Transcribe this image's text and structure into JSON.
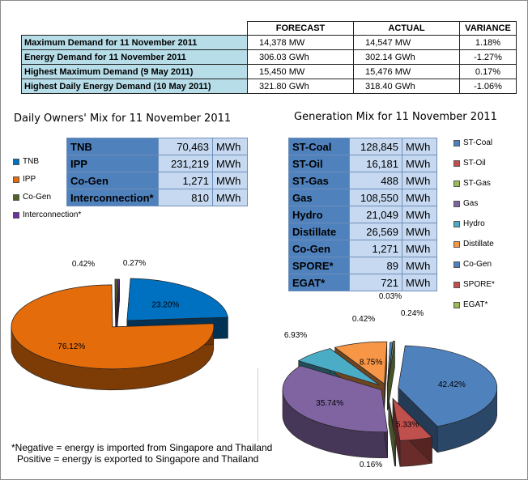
{
  "summary": {
    "headers": [
      "FORECAST",
      "ACTUAL",
      "VARIANCE"
    ],
    "rows": [
      {
        "label": "Maximum Demand for 11 November 2011",
        "forecast": "14,378 MW",
        "actual": "14,547 MW",
        "variance": "1.18%"
      },
      {
        "label": "Energy Demand for 11 November 2011",
        "forecast": "306.03 GWh",
        "actual": "302.14 GWh",
        "variance": "-1.27%"
      },
      {
        "label": "Highest Maximum Demand (9 May 2011)",
        "forecast": "15,450 MW",
        "actual": "15,476 MW",
        "variance": "0.17%"
      },
      {
        "label": "Highest Daily Energy Demand (10 May 2011)",
        "forecast": "321.80 GWh",
        "actual": "318.40 GWh",
        "variance": "-1.06%"
      }
    ]
  },
  "owners": {
    "title": "Daily Owners' Mix for 11 November 2011",
    "rows": [
      {
        "name": "TNB",
        "value": "70,463",
        "unit": "MWh"
      },
      {
        "name": "IPP",
        "value": "231,219",
        "unit": "MWh"
      },
      {
        "name": "Co-Gen",
        "value": "1,271",
        "unit": "MWh"
      },
      {
        "name": "Interconnection*",
        "value": "810",
        "unit": "MWh"
      }
    ]
  },
  "generation": {
    "title": "Generation Mix for 11 November 2011",
    "rows": [
      {
        "name": "ST-Coal",
        "value": "128,845",
        "unit": "MWh"
      },
      {
        "name": "ST-Oil",
        "value": "16,181",
        "unit": "MWh"
      },
      {
        "name": "ST-Gas",
        "value": "488",
        "unit": "MWh"
      },
      {
        "name": "Gas",
        "value": "108,550",
        "unit": "MWh"
      },
      {
        "name": "Hydro",
        "value": "21,049",
        "unit": "MWh"
      },
      {
        "name": "Distillate",
        "value": "26,569",
        "unit": "MWh"
      },
      {
        "name": "Co-Gen",
        "value": "1,271",
        "unit": "MWh"
      },
      {
        "name": "SPORE*",
        "value": "89",
        "unit": "MWh"
      },
      {
        "name": "EGAT*",
        "value": "721",
        "unit": "MWh"
      }
    ]
  },
  "chart_data": [
    {
      "type": "pie",
      "title": "Daily Owners' Mix for 11 November 2011",
      "categories": [
        "TNB",
        "IPP",
        "Co-Gen",
        "Interconnection*"
      ],
      "values": [
        23.2,
        76.12,
        0.42,
        0.27
      ],
      "labels": [
        "23.20%",
        "76.12%",
        "0.42%",
        "0.27%"
      ],
      "colors": [
        "#0070c0",
        "#e46c0a",
        "#4f6228",
        "#7030a0"
      ],
      "legend": "left"
    },
    {
      "type": "pie",
      "title": "Generation Mix for 11 November 2011",
      "categories": [
        "ST-Coal",
        "ST-Oil",
        "ST-Gas",
        "Gas",
        "Hydro",
        "Distillate",
        "Co-Gen",
        "SPORE*",
        "EGAT*"
      ],
      "values": [
        42.42,
        5.33,
        0.16,
        35.74,
        6.93,
        8.75,
        0.42,
        0.03,
        0.24
      ],
      "labels": [
        "42.42%",
        "5.33%",
        "0.16%",
        "35.74%",
        "6.93%",
        "8.75%",
        "0.42%",
        "0.03%",
        "0.24%"
      ],
      "colors": [
        "#4f81bd",
        "#c0504d",
        "#9bbb59",
        "#8064a2",
        "#4bacc6",
        "#f79646",
        "#4f81bd",
        "#c0504d",
        "#9bbb59"
      ],
      "legend": "right"
    }
  ],
  "note": {
    "line1": "*Negative = energy is imported from Singapore and Thailand",
    "line2": "Positive = energy is exported to Singapore and Thailand"
  }
}
